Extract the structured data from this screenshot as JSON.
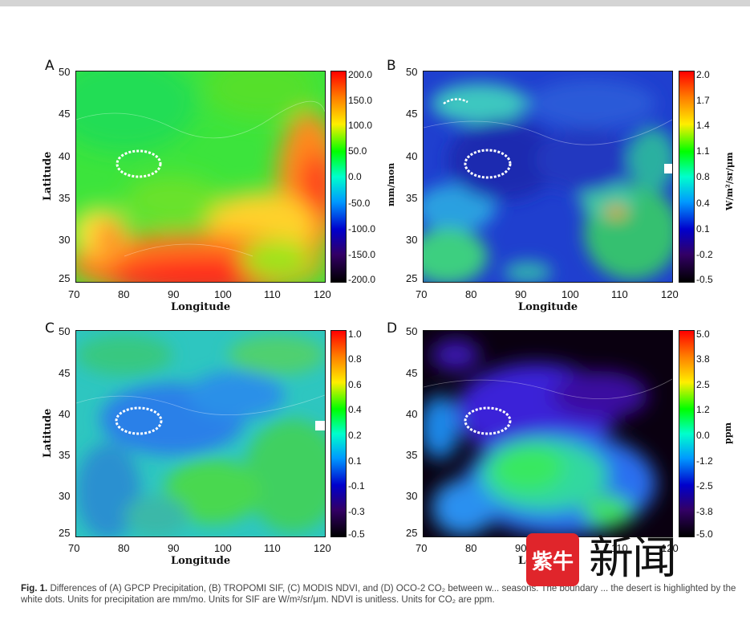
{
  "figure": {
    "panels": [
      {
        "letter": "A",
        "yticks": [
          "50",
          "45",
          "40",
          "35",
          "30",
          "25"
        ],
        "xticks": [
          "70",
          "80",
          "90",
          "100",
          "110",
          "120"
        ],
        "xlabel": "Longitude",
        "ylabel": "Latitude",
        "cbar_ticks": [
          "200.0",
          "150.0",
          "100.0",
          "50.0",
          "0.0",
          "-50.0",
          "-100.0",
          "-150.0",
          "-200.0"
        ],
        "unit": "mm/mon"
      },
      {
        "letter": "B",
        "yticks": [
          "50",
          "45",
          "40",
          "35",
          "30",
          "25"
        ],
        "xticks": [
          "70",
          "80",
          "90",
          "100",
          "110",
          "120"
        ],
        "xlabel": "Longitude",
        "ylabel": "",
        "cbar_ticks": [
          "2.0",
          "1.7",
          "1.4",
          "1.1",
          "0.8",
          "0.4",
          "0.1",
          "-0.2",
          "-0.5"
        ],
        "unit": "W/m²/sr/μm"
      },
      {
        "letter": "C",
        "yticks": [
          "50",
          "45",
          "40",
          "35",
          "30",
          "25"
        ],
        "xticks": [
          "70",
          "80",
          "90",
          "100",
          "110",
          "120"
        ],
        "xlabel": "Longitude",
        "ylabel": "Latitude",
        "cbar_ticks": [
          "1.0",
          "0.8",
          "0.6",
          "0.4",
          "0.2",
          "0.1",
          "-0.1",
          "-0.3",
          "-0.5"
        ],
        "unit": ""
      },
      {
        "letter": "D",
        "yticks": [
          "50",
          "45",
          "40",
          "35",
          "30",
          "25"
        ],
        "xticks": [
          "70",
          "80",
          "90",
          "100",
          "110",
          "120"
        ],
        "xlabel": "Lo",
        "ylabel": "",
        "cbar_ticks": [
          "5.0",
          "3.8",
          "2.5",
          "1.2",
          "0.0",
          "-1.2",
          "-2.5",
          "-3.8",
          "-5.0"
        ],
        "unit": "ppm"
      }
    ]
  },
  "caption": {
    "label": "Fig. 1.",
    "text": "Differences of (A) GPCP Precipitation, (B) TROPOMI SIF, (C) MODIS NDVI, and (D) OCO-2 CO₂ between w... seasons. The boundary ... the desert is highlighted by the white dots. Units for precipitation are mm/mo. Units for SIF are W/m²/sr/μm. NDVI is unitless. Units for CO₂ are ppm."
  },
  "watermark": {
    "badge": "紫牛",
    "text": "新闻"
  },
  "colors": {
    "background": "#ffffff",
    "topbar": "#d4d4d4",
    "rainbow_top": "#ff0000",
    "rainbow_bottom": "#000000"
  }
}
